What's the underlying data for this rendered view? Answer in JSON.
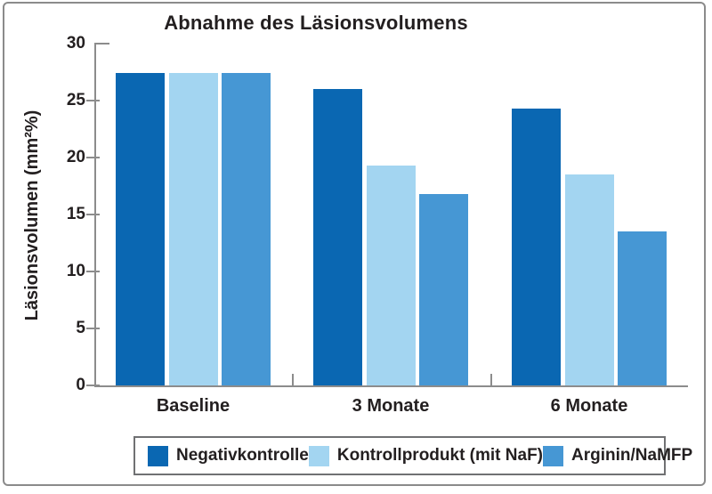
{
  "frame": {
    "border_color": "#8b8b8b",
    "background": "#ffffff"
  },
  "chart_data": {
    "type": "bar",
    "title": "Abnahme des Läsionsvolumens",
    "ylabel": "Läsionsvolumen (mm²%)",
    "xlabel": "",
    "categories": [
      "Baseline",
      "3 Monate",
      "6 Monate"
    ],
    "series": [
      {
        "name": "Negativkontrolle",
        "color": "#0a67b2",
        "values": [
          27.4,
          26.0,
          24.3
        ]
      },
      {
        "name": "Kontrollprodukt (mit NaF)",
        "color": "#a3d5f1",
        "values": [
          27.4,
          19.3,
          18.5
        ]
      },
      {
        "name": "Arginin/NaMFP",
        "color": "#4697d4",
        "values": [
          27.4,
          16.8,
          13.5
        ]
      }
    ],
    "ylim": [
      0,
      30
    ],
    "yticks": [
      30,
      25,
      20,
      15,
      10,
      5,
      0
    ],
    "grid": false,
    "legend_position": "bottom",
    "axis_color": "#8c8c8c",
    "text_color": "#231f20"
  }
}
